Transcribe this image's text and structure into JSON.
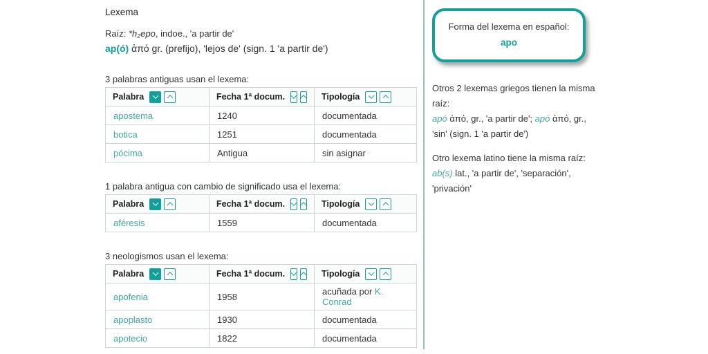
{
  "colors": {
    "accent": "#14a09a",
    "link": "#3fa8a3",
    "divider": "#8fbfbc"
  },
  "main": {
    "title": "Lexema",
    "root_line": {
      "label": "Raíz: ",
      "root": "*h₂epo",
      "suffix": ", indoe., 'a partir de'"
    },
    "lexeme_line": {
      "lexeme": "ap(ó)",
      "description": " ἀπό gr. (prefijo), 'lejos de' (sign. 1 'a partir de')"
    },
    "tables": [
      {
        "caption": "3 palabras antiguas usan el lexema:",
        "headers": [
          "Palabra",
          "Fecha 1ª docum.",
          "Tipología"
        ],
        "rows": [
          {
            "word": "apostema",
            "date": "1240",
            "typology": "documentada"
          },
          {
            "word": "botica",
            "date": "1251",
            "typology": "documentada"
          },
          {
            "word": "pócima",
            "date": "Antigua",
            "typology": "sin asignar"
          }
        ]
      },
      {
        "caption": "1 palabra antigua con cambio de significado usa el lexema:",
        "headers": [
          "Palabra",
          "Fecha 1ª docum.",
          "Tipología"
        ],
        "rows": [
          {
            "word": "aféresis",
            "date": "1559",
            "typology": "documentada"
          }
        ]
      },
      {
        "caption": "3 neologismos usan el lexema:",
        "headers": [
          "Palabra",
          "Fecha 1ª docum.",
          "Tipología"
        ],
        "rows": [
          {
            "word": "apofenia",
            "date": "1958",
            "typology": "acuñada por ",
            "typology_link": "K. Conrad"
          },
          {
            "word": "apoplasto",
            "date": "1930",
            "typology": "documentada"
          },
          {
            "word": "apotecio",
            "date": "1822",
            "typology": "documentada"
          }
        ]
      }
    ]
  },
  "sidebar": {
    "box": {
      "label": "Forma del lexema en español:",
      "value": "apo"
    },
    "greek": {
      "intro": "Otros 2 lexemas griegos tienen la misma raíz:",
      "link1": "apó",
      "text1": " ἀπό, gr., 'a partir de'; ",
      "link2": "apó",
      "text2": " ἀπό, gr., 'sin' (sign. 1 'a partir de')"
    },
    "latin": {
      "intro": "Otro lexema latino tiene la misma raíz:",
      "link": "ab(s)",
      "text": " lat., 'a partir de', 'separación', 'privación'"
    }
  }
}
